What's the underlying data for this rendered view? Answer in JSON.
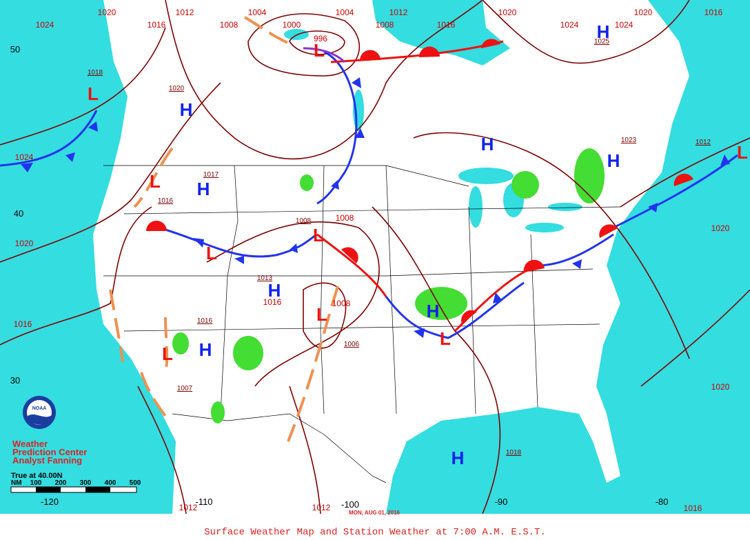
{
  "title": "Surface Weather Map and Station Weather at 7:00 A.M. E.S.T.",
  "date": "MON, AUG 01, 2016",
  "credits": [
    "Weather",
    "Prediction Center",
    "Analyst Fanning"
  ],
  "scale": {
    "label": "True at 40.00N",
    "ticks": [
      "NM",
      "100",
      "200",
      "300",
      "400",
      "500"
    ]
  },
  "latitude_labels": [
    "50",
    "40",
    "30"
  ],
  "longitude_labels": [
    "-120",
    "-110",
    "-100",
    "-90",
    "-80"
  ],
  "isobar_labels": [
    "1024",
    "1020",
    "1012",
    "1016",
    "1008",
    "1004",
    "1000",
    "996",
    "1004",
    "1012",
    "1008",
    "1016",
    "1020",
    "1024",
    "1024",
    "1020",
    "1016",
    "1024",
    "1020",
    "1016",
    "1020",
    "1020",
    "1012",
    "1012",
    "1016",
    "1008",
    "1016",
    "1008"
  ],
  "center_pressures": [
    "1018",
    "1020",
    "1025",
    "1023",
    "1012",
    "1017",
    "1016",
    "1008",
    "1013",
    "1016",
    "1006",
    "1007",
    "1018"
  ],
  "pressure_centers": [
    "H",
    "H",
    "H",
    "H",
    "H",
    "H",
    "H",
    "H",
    "H",
    "L",
    "L",
    "L",
    "L",
    "L",
    "L",
    "L",
    "L",
    "L"
  ],
  "logo": "NOAA"
}
